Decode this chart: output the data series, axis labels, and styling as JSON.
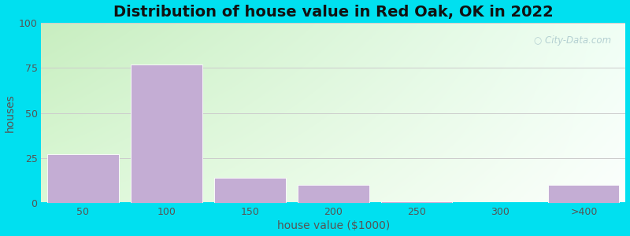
{
  "title": "Distribution of house value in Red Oak, OK in 2022",
  "xlabel": "house value ($1000)",
  "ylabel": "houses",
  "bar_labels": [
    "50",
    "100",
    "150",
    "200",
    "250",
    "300",
    ">400"
  ],
  "bar_values": [
    27,
    77,
    14,
    10,
    1,
    0,
    10
  ],
  "bar_color": "#c4add4",
  "bar_edgecolor": "#ffffff",
  "ylim": [
    0,
    100
  ],
  "yticks": [
    0,
    25,
    50,
    75,
    100
  ],
  "background_outer": "#00e0f0",
  "title_fontsize": 14,
  "axis_label_fontsize": 10,
  "tick_fontsize": 9,
  "watermark_text": "City-Data.com",
  "grid_color": "#cccccc",
  "tick_color": "#555555",
  "gradient_top_left": "#c8eec0",
  "gradient_bottom_right": "#f8fffc"
}
